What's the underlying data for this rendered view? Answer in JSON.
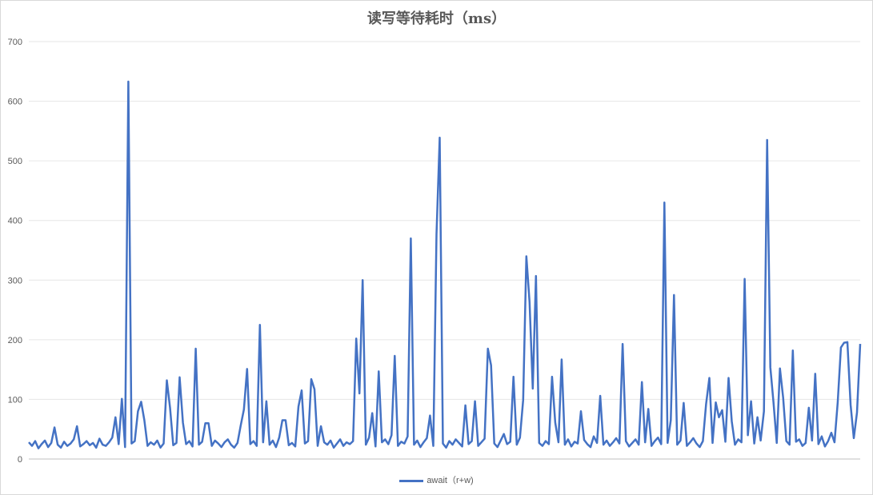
{
  "chart_data": {
    "type": "line",
    "title": "读写等待耗时（ms）",
    "xlabel": "",
    "ylabel": "",
    "ylim": [
      0,
      700
    ],
    "yticks": [
      0,
      100,
      200,
      300,
      400,
      500,
      600,
      700
    ],
    "grid": true,
    "legend_position": "bottom",
    "series": [
      {
        "name": "await（r+w)",
        "color": "#4472c4",
        "values": [
          28,
          22,
          30,
          18,
          25,
          31,
          20,
          27,
          53,
          24,
          19,
          29,
          22,
          26,
          33,
          55,
          21,
          25,
          30,
          23,
          27,
          19,
          34,
          24,
          22,
          28,
          36,
          70,
          25,
          101,
          20,
          633,
          26,
          30,
          80,
          96,
          65,
          22,
          28,
          24,
          31,
          19,
          26,
          132,
          86,
          23,
          27,
          137,
          61,
          25,
          30,
          21,
          185,
          24,
          29,
          60,
          60,
          22,
          31,
          26,
          20,
          28,
          33,
          24,
          19,
          27,
          56,
          83,
          151,
          25,
          30,
          22,
          225,
          28,
          97,
          24,
          31,
          20,
          36,
          65,
          65,
          23,
          27,
          21,
          88,
          115,
          26,
          30,
          134,
          117,
          22,
          55,
          28,
          24,
          31,
          19,
          26,
          33,
          22,
          28,
          25,
          30,
          202,
          110,
          300,
          24,
          36,
          77,
          21,
          147,
          28,
          33,
          25,
          40,
          173,
          22,
          29,
          26,
          38,
          370,
          24,
          31,
          20,
          28,
          35,
          73,
          22,
          377,
          539,
          26,
          19,
          30,
          24,
          33,
          27,
          21,
          90,
          25,
          30,
          97,
          22,
          28,
          34,
          185,
          157,
          26,
          20,
          31,
          42,
          25,
          29,
          138,
          24,
          36,
          99,
          340,
          263,
          118,
          307,
          27,
          22,
          30,
          25,
          138,
          61,
          28,
          167,
          24,
          33,
          21,
          29,
          26,
          80,
          32,
          25,
          20,
          38,
          27,
          106,
          24,
          31,
          22,
          28,
          35,
          26,
          193,
          30,
          21,
          27,
          33,
          24,
          129,
          28,
          84,
          22,
          30,
          36,
          25,
          430,
          27,
          65,
          275,
          24,
          31,
          94,
          22,
          28,
          35,
          26,
          20,
          30,
          92,
          136,
          27,
          95,
          70,
          82,
          29,
          136,
          63,
          24,
          33,
          28,
          302,
          40,
          97,
          26,
          70,
          31,
          80,
          535,
          154,
          94,
          27,
          152,
          103,
          30,
          24,
          182,
          29,
          33,
          22,
          27,
          86,
          31,
          143,
          25,
          38,
          21,
          30,
          44,
          28,
          95,
          187,
          195,
          196,
          91,
          35,
          78,
          193
        ]
      }
    ]
  }
}
